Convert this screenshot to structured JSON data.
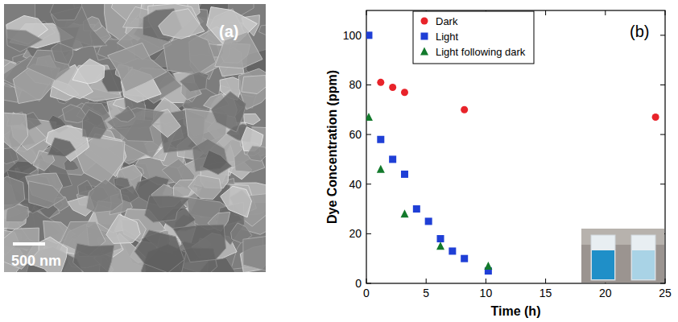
{
  "chart_data": {
    "type": "scatter",
    "panel_label": "(b)",
    "x_label": "Time (h)",
    "y_label": "Dye Concentration (ppm)",
    "xlim": [
      0,
      25
    ],
    "xticks": [
      0,
      5,
      10,
      15,
      20,
      25
    ],
    "ylim": [
      0,
      110
    ],
    "yticks": [
      0,
      20,
      40,
      60,
      80,
      100
    ],
    "legend": "upper left",
    "series": [
      {
        "name": "Dark",
        "color": "#e8232a",
        "marker": "circle",
        "x": [
          1.2,
          2.2,
          3.2,
          8.2,
          24.2
        ],
        "values": [
          81,
          79,
          77,
          70,
          67
        ]
      },
      {
        "name": "Light",
        "color": "#1f3fd6",
        "marker": "square",
        "x": [
          0.2,
          1.2,
          2.2,
          3.2,
          4.2,
          5.2,
          6.2,
          7.2,
          8.2,
          10.2
        ],
        "values": [
          100,
          58,
          50,
          44,
          30,
          25,
          18,
          13,
          10,
          5
        ]
      },
      {
        "name": "Light following dark",
        "color": "#137a2c",
        "marker": "triangle",
        "x": [
          0.2,
          1.2,
          3.2,
          6.2,
          10.2
        ],
        "values": [
          67,
          46,
          28,
          15,
          7
        ]
      }
    ]
  },
  "image_panel": {
    "panel_label": "(a)",
    "scale_bar_label": "500 nm"
  }
}
